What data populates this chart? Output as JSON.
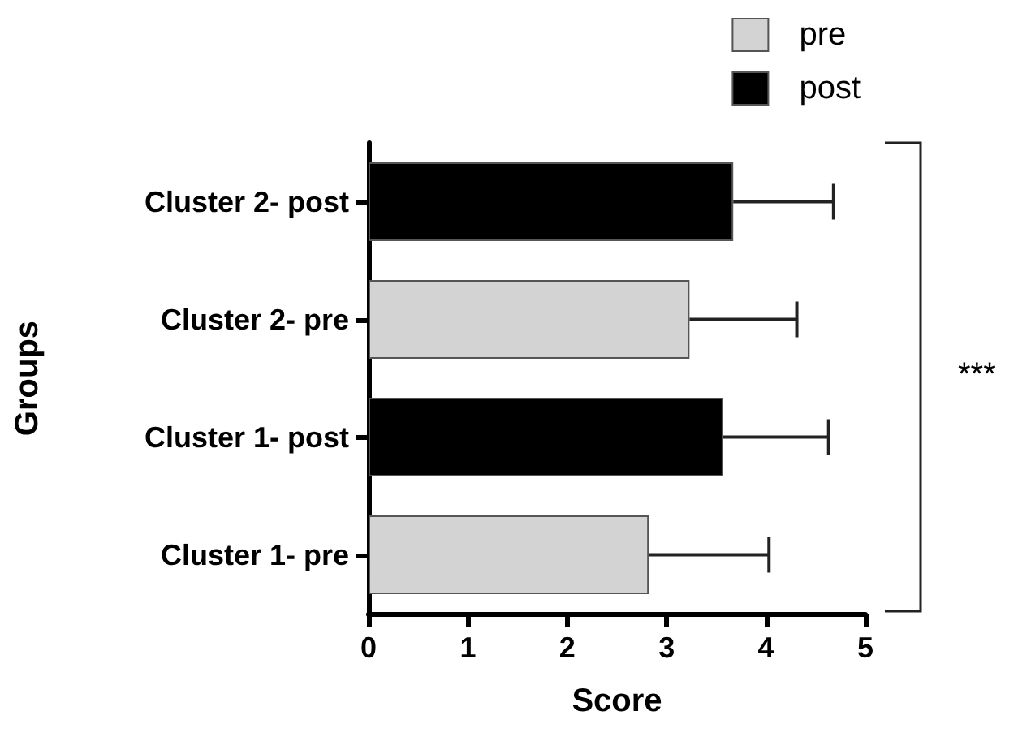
{
  "chart_data": {
    "type": "bar",
    "orientation": "horizontal",
    "xlabel": "Score",
    "ylabel": "Groups",
    "categories": [
      "Cluster 2- post",
      "Cluster 2- pre",
      "Cluster 1- post",
      "Cluster 1- pre"
    ],
    "series": [
      {
        "name": "pre",
        "color": "#d3d3d3",
        "values": [
          null,
          3.23,
          null,
          2.82
        ],
        "errors": [
          null,
          [
            3.23,
            4.31
          ],
          null,
          [
            2.82,
            4.03
          ]
        ]
      },
      {
        "name": "post",
        "color": "#000000",
        "values": [
          3.67,
          null,
          3.57,
          null
        ],
        "errors": [
          [
            3.67,
            4.68
          ],
          null,
          [
            3.57,
            4.63
          ],
          null
        ]
      }
    ],
    "xlim": [
      0,
      5
    ],
    "xticks": [
      0,
      1,
      2,
      3,
      4,
      5
    ],
    "legend": "top right",
    "annotations": [
      "***"
    ]
  }
}
